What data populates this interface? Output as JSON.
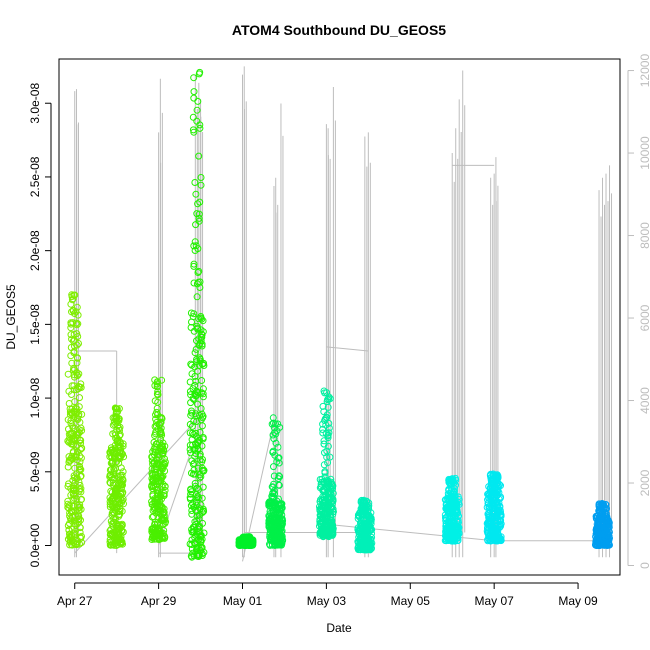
{
  "chart_data": {
    "type": "scatter",
    "title": "ATOM4 Southbound DU_GEOS5",
    "xlabel": "Date",
    "ylabel": "DU_GEOS5",
    "y_right_label": "",
    "x_ticks": [
      "Apr 27",
      "Apr 29",
      "May 01",
      "May 03",
      "May 05",
      "May 07",
      "May 09"
    ],
    "y_ticks": [
      "0.0e+00",
      "5.0e-09",
      "1.0e-08",
      "1.5e-08",
      "2.0e-08",
      "2.5e-08",
      "3.0e-08"
    ],
    "y_right_ticks": [
      "0",
      "2000",
      "4000",
      "6000",
      "8000",
      "10000",
      "12000"
    ],
    "xlim": [
      "2017-04-26 15:00",
      "2017-05-10 00:00"
    ],
    "ylim": [
      -2e-09,
      3.3e-08
    ],
    "y_right_lim": [
      -230,
      12280
    ],
    "grid": false,
    "legend": "none",
    "series": [
      {
        "date": "2017-04-27 00:00",
        "y_min": 0.0,
        "y_max": 1.72e-08,
        "dense_max": 1.2e-08,
        "color": "#7fee00"
      },
      {
        "date": "2017-04-28 00:00",
        "y_min": 0.0,
        "y_max": 9.5e-09,
        "dense_max": 7e-09,
        "color": "#6fee00"
      },
      {
        "date": "2017-04-29 00:00",
        "y_min": 4e-10,
        "y_max": 1.13e-08,
        "dense_max": 7e-09,
        "color": "#4aef00"
      },
      {
        "date": "2017-04-29 22:00",
        "y_min": -8e-10,
        "y_max": 3.24e-08,
        "dense_max": 1.6e-08,
        "color": "#22f000"
      },
      {
        "date": "2017-05-01 02:00",
        "y_min": 0.0,
        "y_max": 6e-10,
        "dense_max": 4e-10,
        "color": "#00f028"
      },
      {
        "date": "2017-05-01 19:00",
        "y_min": 0.0,
        "y_max": 8.8e-09,
        "dense_max": 3e-09,
        "color": "#00f048"
      },
      {
        "date": "2017-05-03 00:00",
        "y_min": 6e-10,
        "y_max": 1.05e-08,
        "dense_max": 4.5e-09,
        "color": "#00f0a0"
      },
      {
        "date": "2017-05-03 22:00",
        "y_min": -3e-10,
        "y_max": 3.1e-09,
        "dense_max": 2.3e-09,
        "color": "#00f0b8"
      },
      {
        "date": "2017-05-06 00:00",
        "y_min": 3e-10,
        "y_max": 4.6e-09,
        "dense_max": 3.3e-09,
        "color": "#00f0e6"
      },
      {
        "date": "2017-05-07 00:00",
        "y_min": 3e-10,
        "y_max": 4.9e-09,
        "dense_max": 4.2e-09,
        "color": "#00e8f0"
      },
      {
        "date": "2017-05-09 14:00",
        "y_min": 0.0,
        "y_max": 2.9e-09,
        "dense_max": 2e-09,
        "color": "#009ef0"
      }
    ],
    "altitude_series": {
      "axis": "right",
      "color": "#bdbdbd",
      "spikes": [
        {
          "date": "2017-04-27 00:00",
          "peak": 11500
        },
        {
          "date": "2017-04-27 01:00",
          "peak": 11550
        },
        {
          "date": "2017-04-29 00:00",
          "peak": 10500
        },
        {
          "date": "2017-04-29 01:00",
          "peak": 11800
        },
        {
          "date": "2017-04-29 21:00",
          "peak": 11900
        },
        {
          "date": "2017-04-29 23:00",
          "peak": 11700
        },
        {
          "date": "2017-04-30 00:00",
          "peak": 11300
        },
        {
          "date": "2017-05-01 00:00",
          "peak": 11900
        },
        {
          "date": "2017-05-01 01:00",
          "peak": 12100
        },
        {
          "date": "2017-05-01 18:00",
          "peak": 9200
        },
        {
          "date": "2017-05-01 19:00",
          "peak": 9400
        },
        {
          "date": "2017-05-01 22:00",
          "peak": 11200
        },
        {
          "date": "2017-05-03 00:00",
          "peak": 10700
        },
        {
          "date": "2017-05-03 01:00",
          "peak": 10600
        },
        {
          "date": "2017-05-03 04:00",
          "peak": 11600
        },
        {
          "date": "2017-05-03 22:00",
          "peak": 10400
        },
        {
          "date": "2017-05-04 00:00",
          "peak": 10500
        },
        {
          "date": "2017-05-06 00:00",
          "peak": 10000
        },
        {
          "date": "2017-05-06 02:00",
          "peak": 10600
        },
        {
          "date": "2017-05-06 04:00",
          "peak": 11300
        },
        {
          "date": "2017-05-06 06:00",
          "peak": 12000
        },
        {
          "date": "2017-05-06 22:00",
          "peak": 9400
        },
        {
          "date": "2017-05-07 00:00",
          "peak": 9500
        },
        {
          "date": "2017-05-07 01:00",
          "peak": 9900
        },
        {
          "date": "2017-05-09 12:00",
          "peak": 9100
        },
        {
          "date": "2017-05-09 14:00",
          "peak": 9400
        },
        {
          "date": "2017-05-09 16:00",
          "peak": 9500
        },
        {
          "date": "2017-05-09 18:00",
          "peak": 9700
        }
      ],
      "connectors": [
        {
          "from": [
            "2017-04-27 02:00",
            5200
          ],
          "to": [
            "2017-04-28 00:00",
            5200
          ]
        },
        {
          "from": [
            "2017-04-28 00:00",
            5200
          ],
          "to": [
            "2017-04-28 00:00",
            300
          ]
        },
        {
          "from": [
            "2017-04-27 00:00",
            300
          ],
          "to": [
            "2017-04-29 21:00",
            3500
          ]
        },
        {
          "from": [
            "2017-04-29 00:00",
            500
          ],
          "to": [
            "2017-04-29 22:00",
            3200
          ]
        },
        {
          "from": [
            "2017-04-29 00:00",
            300
          ],
          "to": [
            "2017-04-29 22:00",
            300
          ]
        },
        {
          "from": [
            "2017-05-01 00:00",
            100
          ],
          "to": [
            "2017-05-01 18:00",
            3500
          ]
        },
        {
          "from": [
            "2017-05-01 01:00",
            800
          ],
          "to": [
            "2017-05-04 00:00",
            800
          ]
        },
        {
          "from": [
            "2017-05-03 00:00",
            5300
          ],
          "to": [
            "2017-05-04 00:00",
            5200
          ]
        },
        {
          "from": [
            "2017-05-03 00:00",
            1000
          ],
          "to": [
            "2017-05-07 00:00",
            600
          ]
        },
        {
          "from": [
            "2017-05-06 00:00",
            9700
          ],
          "to": [
            "2017-05-07 00:00",
            9700
          ]
        },
        {
          "from": [
            "2017-05-07 00:00",
            600
          ],
          "to": [
            "2017-05-09 14:00",
            600
          ]
        }
      ]
    }
  }
}
